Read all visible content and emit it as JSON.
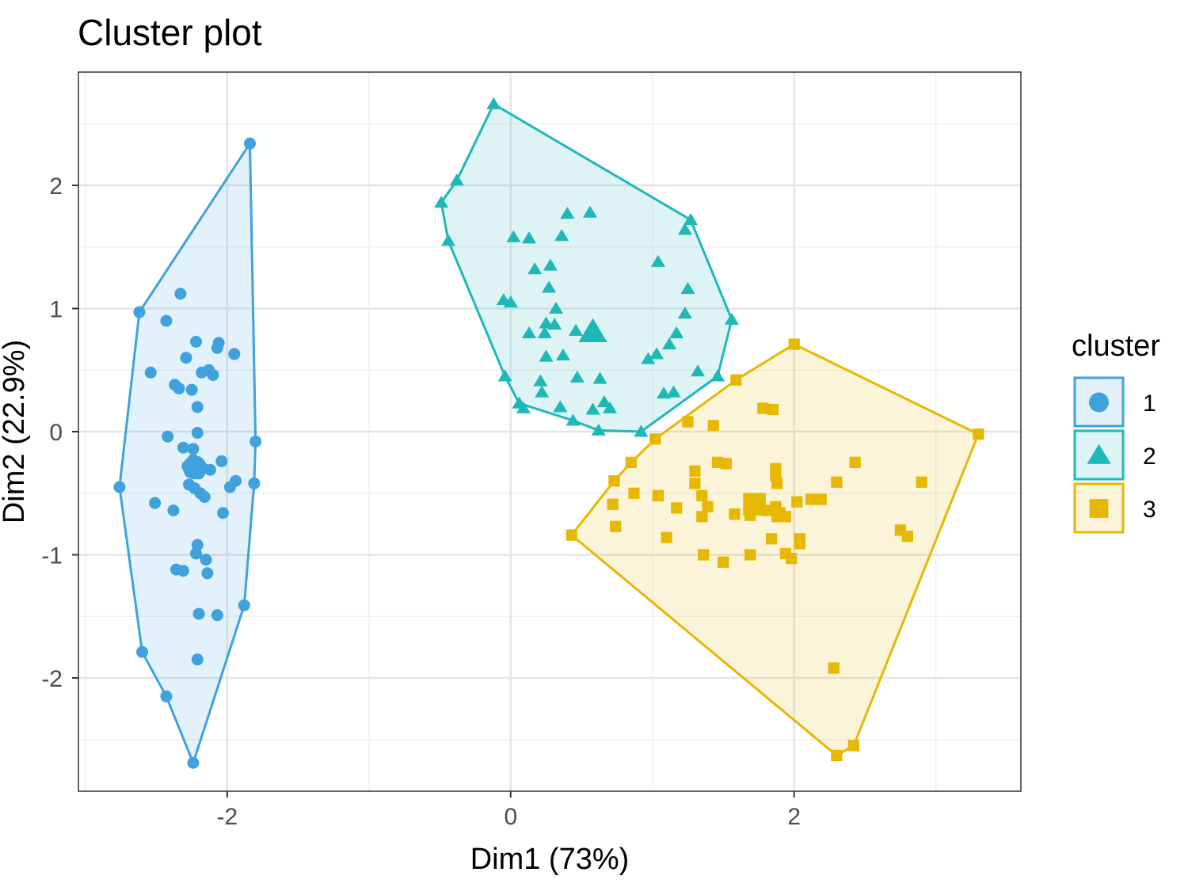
{
  "chart_data": {
    "type": "scatter",
    "title": "Cluster plot",
    "xlabel": "Dim1 (73%)",
    "ylabel": "Dim2 (22.9%)",
    "xlim": [
      -3.05,
      3.6
    ],
    "ylim": [
      -2.92,
      2.92
    ],
    "x_ticks": [
      -2,
      0,
      2
    ],
    "x_tick_labels": [
      "-2",
      "0",
      "2"
    ],
    "y_ticks": [
      -2,
      -1,
      0,
      1,
      2
    ],
    "y_tick_labels": [
      "-2",
      "-1",
      "0",
      "1",
      "2"
    ],
    "grid": true,
    "legend": {
      "title": "cluster",
      "position": "right",
      "labels": [
        "1",
        "2",
        "3"
      ]
    },
    "series": [
      {
        "name": "1",
        "color": "#3fa2dd",
        "marker": "circle",
        "centroid": [
          -2.23,
          -0.29
        ],
        "hull": [
          [
            -1.84,
            2.34
          ],
          [
            -1.8,
            -0.08
          ],
          [
            -1.81,
            -0.42
          ],
          [
            -1.88,
            -1.41
          ],
          [
            -2.24,
            -2.69
          ],
          [
            -2.43,
            -2.15
          ],
          [
            -2.6,
            -1.79
          ],
          [
            -2.76,
            -0.45
          ],
          [
            -2.62,
            0.97
          ]
        ],
        "points": [
          [
            -1.84,
            2.34
          ],
          [
            -2.62,
            0.97
          ],
          [
            -2.33,
            1.12
          ],
          [
            -2.43,
            0.9
          ],
          [
            -2.22,
            0.73
          ],
          [
            -2.06,
            0.72
          ],
          [
            -2.07,
            0.68
          ],
          [
            -1.95,
            0.63
          ],
          [
            -2.29,
            0.6
          ],
          [
            -2.54,
            0.48
          ],
          [
            -2.18,
            0.48
          ],
          [
            -2.13,
            0.5
          ],
          [
            -2.1,
            0.46
          ],
          [
            -2.37,
            0.38
          ],
          [
            -2.34,
            0.35
          ],
          [
            -2.25,
            0.34
          ],
          [
            -2.21,
            0.2
          ],
          [
            -2.21,
            -0.01
          ],
          [
            -2.42,
            -0.04
          ],
          [
            -2.31,
            -0.13
          ],
          [
            -2.24,
            -0.14
          ],
          [
            -1.8,
            -0.08
          ],
          [
            -2.04,
            -0.24
          ],
          [
            -2.24,
            -0.23
          ],
          [
            -2.28,
            -0.28
          ],
          [
            -2.2,
            -0.29
          ],
          [
            -2.17,
            -0.3
          ],
          [
            -2.12,
            -0.31
          ],
          [
            -2.26,
            -0.33
          ],
          [
            -2.2,
            -0.34
          ],
          [
            -2.76,
            -0.45
          ],
          [
            -2.27,
            -0.43
          ],
          [
            -2.23,
            -0.46
          ],
          [
            -2.19,
            -0.5
          ],
          [
            -2.16,
            -0.53
          ],
          [
            -1.98,
            -0.45
          ],
          [
            -1.94,
            -0.4
          ],
          [
            -1.81,
            -0.42
          ],
          [
            -2.51,
            -0.58
          ],
          [
            -2.38,
            -0.64
          ],
          [
            -2.03,
            -0.66
          ],
          [
            -2.21,
            -0.92
          ],
          [
            -2.22,
            -0.99
          ],
          [
            -2.15,
            -1.04
          ],
          [
            -2.36,
            -1.12
          ],
          [
            -2.31,
            -1.13
          ],
          [
            -2.14,
            -1.15
          ],
          [
            -1.88,
            -1.41
          ],
          [
            -2.2,
            -1.48
          ],
          [
            -2.07,
            -1.49
          ],
          [
            -2.21,
            -1.85
          ],
          [
            -2.6,
            -1.79
          ],
          [
            -2.43,
            -2.15
          ],
          [
            -2.24,
            -2.69
          ]
        ]
      },
      {
        "name": "2",
        "color": "#1fb8b8",
        "marker": "triangle",
        "centroid": [
          0.58,
          0.81
        ],
        "hull": [
          [
            -0.12,
            2.66
          ],
          [
            1.27,
            1.72
          ],
          [
            1.56,
            0.91
          ],
          [
            1.46,
            0.45
          ],
          [
            0.92,
            0.0
          ],
          [
            0.62,
            0.01
          ],
          [
            0.44,
            0.09
          ],
          [
            0.06,
            0.23
          ],
          [
            -0.04,
            0.45
          ],
          [
            -0.44,
            1.55
          ],
          [
            -0.49,
            1.86
          ],
          [
            -0.38,
            2.04
          ]
        ],
        "points": [
          [
            -0.12,
            2.66
          ],
          [
            -0.38,
            2.04
          ],
          [
            -0.49,
            1.86
          ],
          [
            -0.44,
            1.55
          ],
          [
            0.02,
            1.58
          ],
          [
            0.13,
            1.57
          ],
          [
            0.36,
            1.59
          ],
          [
            0.4,
            1.77
          ],
          [
            0.56,
            1.78
          ],
          [
            1.27,
            1.72
          ],
          [
            1.23,
            1.64
          ],
          [
            0.17,
            1.32
          ],
          [
            0.28,
            1.35
          ],
          [
            1.04,
            1.38
          ],
          [
            0.27,
            1.17
          ],
          [
            1.25,
            1.16
          ],
          [
            -0.05,
            1.07
          ],
          [
            0.0,
            1.05
          ],
          [
            0.32,
            1.0
          ],
          [
            0.31,
            0.87
          ],
          [
            0.13,
            0.8
          ],
          [
            0.24,
            0.8
          ],
          [
            0.25,
            0.88
          ],
          [
            0.46,
            0.82
          ],
          [
            1.56,
            0.91
          ],
          [
            1.23,
            0.96
          ],
          [
            1.17,
            0.8
          ],
          [
            1.12,
            0.71
          ],
          [
            0.25,
            0.61
          ],
          [
            0.37,
            0.62
          ],
          [
            1.03,
            0.63
          ],
          [
            0.97,
            0.59
          ],
          [
            1.32,
            0.49
          ],
          [
            1.46,
            0.45
          ],
          [
            -0.04,
            0.45
          ],
          [
            0.47,
            0.44
          ],
          [
            0.63,
            0.43
          ],
          [
            0.21,
            0.41
          ],
          [
            0.22,
            0.32
          ],
          [
            1.08,
            0.31
          ],
          [
            1.15,
            0.32
          ],
          [
            0.06,
            0.23
          ],
          [
            0.09,
            0.19
          ],
          [
            0.35,
            0.2
          ],
          [
            0.58,
            0.18
          ],
          [
            0.66,
            0.24
          ],
          [
            0.7,
            0.19
          ],
          [
            0.44,
            0.09
          ],
          [
            0.62,
            0.01
          ],
          [
            0.92,
            0.0
          ]
        ]
      },
      {
        "name": "3",
        "color": "#e7b800",
        "marker": "square",
        "centroid": [
          1.72,
          -0.59
        ],
        "hull": [
          [
            2.0,
            0.71
          ],
          [
            3.3,
            -0.02
          ],
          [
            2.42,
            -2.55
          ],
          [
            2.3,
            -2.63
          ],
          [
            0.43,
            -0.84
          ],
          [
            0.73,
            -0.4
          ],
          [
            0.85,
            -0.25
          ],
          [
            1.02,
            -0.06
          ],
          [
            1.59,
            0.42
          ]
        ],
        "points": [
          [
            2.0,
            0.71
          ],
          [
            3.3,
            -0.02
          ],
          [
            1.59,
            0.42
          ],
          [
            1.78,
            0.19
          ],
          [
            1.85,
            0.18
          ],
          [
            1.25,
            0.08
          ],
          [
            1.43,
            0.05
          ],
          [
            1.02,
            -0.06
          ],
          [
            0.85,
            -0.25
          ],
          [
            1.46,
            -0.25
          ],
          [
            1.52,
            -0.26
          ],
          [
            1.3,
            -0.32
          ],
          [
            1.87,
            -0.3
          ],
          [
            1.87,
            -0.36
          ],
          [
            2.43,
            -0.25
          ],
          [
            0.73,
            -0.4
          ],
          [
            1.3,
            -0.42
          ],
          [
            1.88,
            -0.42
          ],
          [
            2.3,
            -0.41
          ],
          [
            2.9,
            -0.41
          ],
          [
            0.87,
            -0.5
          ],
          [
            1.04,
            -0.52
          ],
          [
            1.35,
            -0.52
          ],
          [
            2.02,
            -0.57
          ],
          [
            2.19,
            -0.55
          ],
          [
            0.72,
            -0.59
          ],
          [
            1.39,
            -0.61
          ],
          [
            1.74,
            -0.59
          ],
          [
            1.87,
            -0.61
          ],
          [
            1.9,
            -0.66
          ],
          [
            2.12,
            -0.55
          ],
          [
            1.17,
            -0.62
          ],
          [
            1.58,
            -0.67
          ],
          [
            1.69,
            -0.68
          ],
          [
            1.88,
            -0.69
          ],
          [
            1.94,
            -0.69
          ],
          [
            1.81,
            -0.64
          ],
          [
            1.35,
            -0.69
          ],
          [
            0.74,
            -0.77
          ],
          [
            2.75,
            -0.8
          ],
          [
            2.8,
            -0.85
          ],
          [
            1.1,
            -0.86
          ],
          [
            1.84,
            -0.87
          ],
          [
            2.04,
            -0.87
          ],
          [
            2.04,
            -0.91
          ],
          [
            1.36,
            -1.0
          ],
          [
            1.69,
            -1.0
          ],
          [
            1.94,
            -0.99
          ],
          [
            1.98,
            -1.03
          ],
          [
            1.5,
            -1.06
          ],
          [
            0.43,
            -0.84
          ],
          [
            2.28,
            -1.92
          ],
          [
            2.42,
            -2.55
          ],
          [
            2.3,
            -2.63
          ]
        ]
      }
    ]
  }
}
